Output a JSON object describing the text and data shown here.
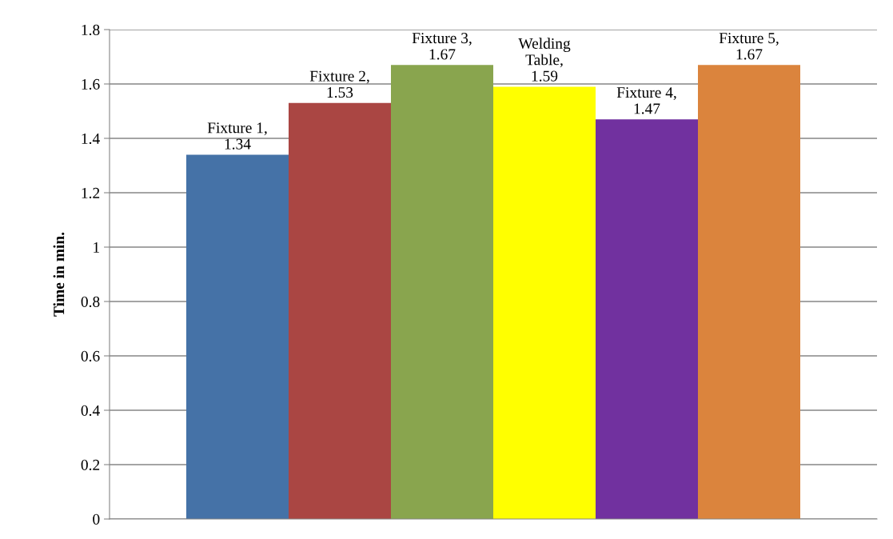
{
  "chart_data": {
    "type": "bar",
    "ylabel": "Time in min.",
    "categories": [
      null,
      null,
      null,
      null,
      null,
      null
    ],
    "values": [
      1.34,
      1.53,
      1.67,
      1.59,
      1.47,
      1.67
    ],
    "colors": [
      "#4572a7",
      "#aa4643",
      "#89a54e",
      "#ffff00",
      "#71319f",
      "#db843d"
    ],
    "value_labels": [
      "Fixture 1,\n1.34",
      "Fixture 2,\n1.53",
      "Fixture 3,\n1.67",
      "Welding\nTable,\n1.59",
      "Fixture 4,\n1.47",
      "Fixture 5,\n1.67"
    ],
    "ylim": [
      0,
      1.8
    ],
    "yticks": [
      0,
      0.2,
      0.4,
      0.6,
      0.8,
      1,
      1.2,
      1.4,
      1.6,
      1.8
    ],
    "grid": "y",
    "tick_labels": "y",
    "legend": false
  }
}
